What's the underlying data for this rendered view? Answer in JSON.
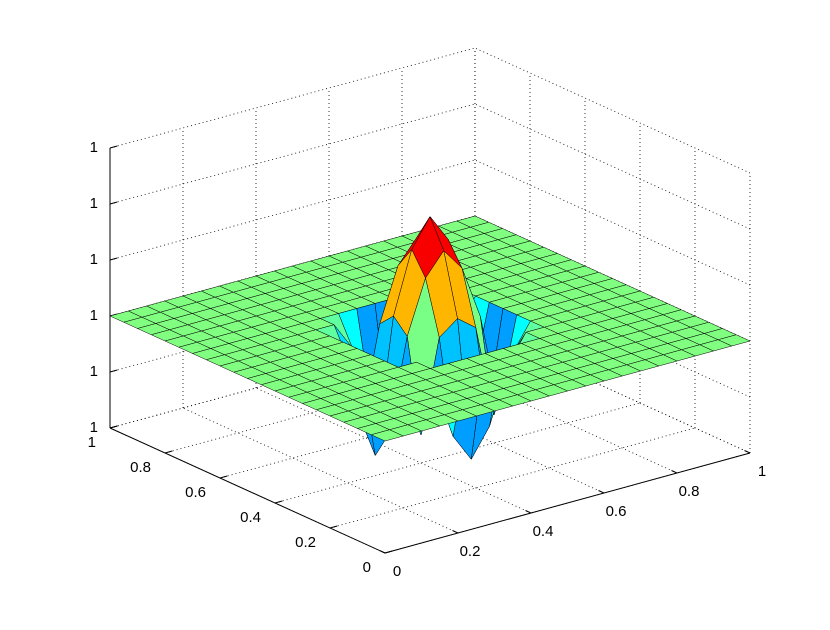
{
  "chart_data": {
    "type": "surface",
    "x": [
      0,
      0.05,
      0.1,
      0.15,
      0.2,
      0.25,
      0.3,
      0.35,
      0.4,
      0.45,
      0.5,
      0.55,
      0.6,
      0.65,
      0.7,
      0.75,
      0.8,
      0.85,
      0.9,
      0.95,
      1
    ],
    "y": [
      0,
      0.05,
      0.1,
      0.15,
      0.2,
      0.25,
      0.3,
      0.35,
      0.4,
      0.45,
      0.5,
      0.55,
      0.6,
      0.65,
      0.7,
      0.75,
      0.8,
      0.85,
      0.9,
      0.95,
      1
    ],
    "z": [
      [
        1,
        1,
        1,
        1,
        1,
        1,
        1,
        1,
        1,
        1,
        1,
        1,
        1,
        1,
        1,
        1,
        1,
        1,
        1,
        1,
        1
      ],
      [
        1,
        1,
        1,
        1,
        1,
        1,
        1,
        1,
        1,
        1,
        1,
        1,
        1,
        1,
        1,
        1,
        1,
        1,
        1,
        1,
        1
      ],
      [
        1,
        1,
        1,
        1,
        1,
        1,
        1,
        1,
        1,
        1,
        1,
        1,
        1,
        1,
        1,
        1,
        1,
        1,
        1,
        1,
        1
      ],
      [
        1,
        1,
        1,
        1,
        1,
        1,
        1,
        1,
        1,
        1,
        1,
        1,
        1,
        1,
        1,
        1,
        1,
        1,
        1,
        1,
        1
      ],
      [
        1,
        1,
        1,
        1,
        1,
        1,
        1,
        1,
        1,
        1,
        1,
        1,
        1,
        1,
        1,
        1,
        1,
        1,
        1,
        1,
        1
      ],
      [
        1,
        1,
        1,
        1,
        1,
        1,
        1,
        1,
        1,
        1,
        1,
        1,
        1,
        1,
        1,
        1,
        1,
        1,
        1,
        1,
        1
      ],
      [
        1,
        1,
        1,
        1,
        1,
        1,
        1,
        1,
        1,
        1,
        1,
        1,
        1,
        1,
        1,
        1,
        1,
        1,
        1,
        1,
        1
      ],
      [
        1,
        1,
        1,
        1,
        1,
        1,
        1,
        1,
        0.99999,
        0.99997,
        0.99996,
        0.99997,
        0.99999,
        1,
        1,
        1,
        1,
        1,
        1,
        1,
        1
      ],
      [
        1,
        1,
        1,
        1,
        1,
        1,
        1,
        0.99999,
        0.99997,
        1.000003,
        1.000008,
        1.000003,
        0.99997,
        0.99999,
        1,
        1,
        1,
        1,
        1,
        1,
        1
      ],
      [
        1,
        1,
        1,
        1,
        1,
        1,
        1,
        0.99997,
        1.000003,
        1.000022,
        1.00003,
        1.000022,
        1.000003,
        0.99997,
        1,
        1,
        1,
        1,
        1,
        1,
        1
      ],
      [
        1,
        1,
        1,
        1,
        1,
        1,
        1,
        0.99996,
        1.000008,
        1.00003,
        1.00004,
        1.00003,
        1.000008,
        0.99996,
        1,
        1,
        1,
        1,
        1,
        1,
        1
      ],
      [
        1,
        1,
        1,
        1,
        1,
        1,
        1,
        0.99997,
        1.000003,
        1.000022,
        1.00003,
        1.000022,
        1.000003,
        0.99997,
        1,
        1,
        1,
        1,
        1,
        1,
        1
      ],
      [
        1,
        1,
        1,
        1,
        1,
        1,
        1,
        0.99999,
        0.99997,
        1.000003,
        1.000008,
        1.000003,
        0.99997,
        0.99999,
        1,
        1,
        1,
        1,
        1,
        1,
        1
      ],
      [
        1,
        1,
        1,
        1,
        1,
        1,
        1,
        1,
        0.99999,
        0.99997,
        0.99996,
        0.99997,
        0.99999,
        1,
        1,
        1,
        1,
        1,
        1,
        1,
        1
      ],
      [
        1,
        1,
        1,
        1,
        1,
        1,
        1,
        1,
        1,
        1,
        1,
        1,
        1,
        1,
        1,
        1,
        1,
        1,
        1,
        1,
        1
      ],
      [
        1,
        1,
        1,
        1,
        1,
        1,
        1,
        1,
        1,
        1,
        1,
        1,
        1,
        1,
        1,
        1,
        1,
        1,
        1,
        1,
        1
      ],
      [
        1,
        1,
        1,
        1,
        1,
        1,
        1,
        1,
        1,
        1,
        1,
        1,
        1,
        1,
        1,
        1,
        1,
        1,
        1,
        1,
        1
      ],
      [
        1,
        1,
        1,
        1,
        1,
        1,
        1,
        1,
        1,
        1,
        1,
        1,
        1,
        1,
        1,
        1,
        1,
        1,
        1,
        1,
        1
      ],
      [
        1,
        1,
        1,
        1,
        1,
        1,
        1,
        1,
        1,
        1,
        1,
        1,
        1,
        1,
        1,
        1,
        1,
        1,
        1,
        1,
        1
      ],
      [
        1,
        1,
        1,
        1,
        1,
        1,
        1,
        1,
        1,
        1,
        1,
        1,
        1,
        1,
        1,
        1,
        1,
        1,
        1,
        1,
        1
      ],
      [
        1,
        1,
        1,
        1,
        1,
        1,
        1,
        1,
        1,
        1,
        1,
        1,
        1,
        1,
        1,
        1,
        1,
        1,
        1,
        1,
        1
      ]
    ],
    "xlim": [
      0,
      1
    ],
    "ylim": [
      0,
      1
    ],
    "zlim": [
      0.99996,
      1.00006
    ],
    "xticks": [
      0,
      0.2,
      0.4,
      0.6,
      0.8,
      1
    ],
    "yticks": [
      0,
      0.2,
      0.4,
      0.6,
      0.8,
      1
    ],
    "zticks": [
      {
        "value": 0.99996,
        "label": "1"
      },
      {
        "value": 0.99998,
        "label": "1"
      },
      {
        "value": 1,
        "label": "1"
      },
      {
        "value": 1.00002,
        "label": "1"
      },
      {
        "value": 1.00004,
        "label": "1"
      },
      {
        "value": 1.00006,
        "label": "1"
      }
    ],
    "grid": true,
    "colormap": "jet",
    "edge_color": "#000000"
  }
}
